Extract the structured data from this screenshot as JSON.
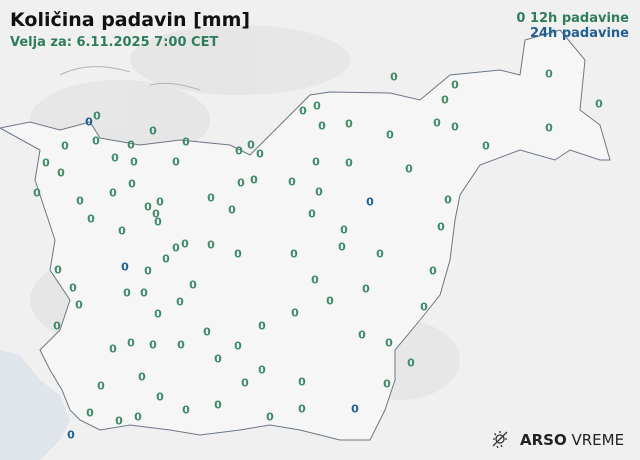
{
  "header": {
    "title": "Količina padavin [mm]",
    "valid": "Velja za: 6.11.2025 7:00 CET"
  },
  "legend": {
    "sample_value": "0",
    "label_12h": "12h padavine",
    "label_24h": "24h padavine",
    "color_12h": "#3f8a68",
    "color_24h": "#1f5f93"
  },
  "stations_value": "0",
  "logo": {
    "brand": "ARSO",
    "product": "VREME",
    "icon": "sun-rain-icon"
  }
}
